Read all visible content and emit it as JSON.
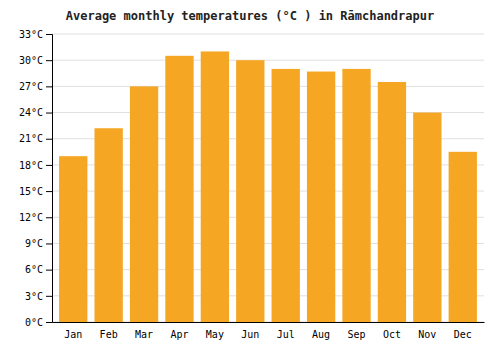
{
  "chart_data": {
    "type": "bar",
    "title": "Average monthly temperatures (°C ) in Rāmchandrapur",
    "categories": [
      "Jan",
      "Feb",
      "Mar",
      "Apr",
      "May",
      "Jun",
      "Jul",
      "Aug",
      "Sep",
      "Oct",
      "Nov",
      "Dec"
    ],
    "values": [
      19.0,
      22.2,
      27.0,
      30.5,
      31.0,
      30.0,
      29.0,
      28.7,
      29.0,
      27.5,
      24.0,
      19.5
    ],
    "color": "#F5A623",
    "ylim": [
      0,
      33
    ],
    "yticks": [
      {
        "value": 0,
        "label": "0°C"
      },
      {
        "value": 3,
        "label": "3°C"
      },
      {
        "value": 6,
        "label": "6°C"
      },
      {
        "value": 9,
        "label": "9°C"
      },
      {
        "value": 12,
        "label": "12°C"
      },
      {
        "value": 15,
        "label": "15°C"
      },
      {
        "value": 18,
        "label": "18°C"
      },
      {
        "value": 21,
        "label": "21°C"
      },
      {
        "value": 24,
        "label": "24°C"
      },
      {
        "value": 27,
        "label": "27°C"
      },
      {
        "value": 30,
        "label": "30°C"
      },
      {
        "value": 33,
        "label": "33°C"
      }
    ],
    "grid": true
  }
}
